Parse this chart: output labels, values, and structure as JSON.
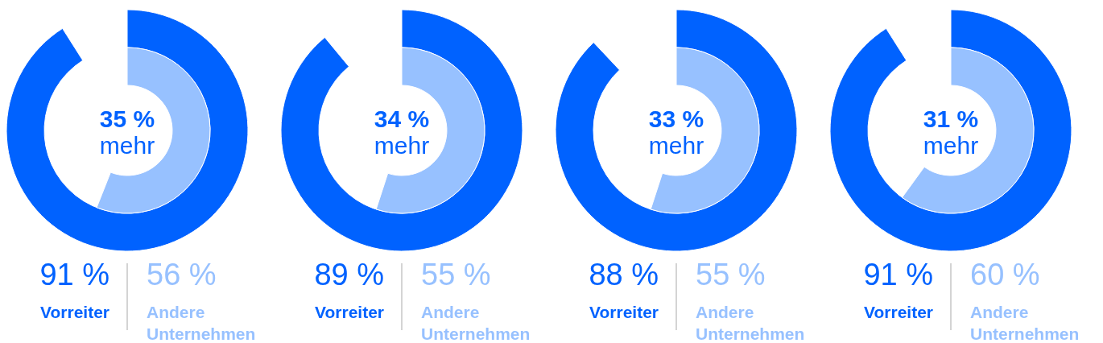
{
  "chart_data": [
    {
      "type": "other",
      "categories": [
        "Vorreiter",
        "Andere Unternehmen"
      ],
      "values": [
        91,
        56
      ],
      "colors": [
        "#0062ff",
        "#97c1ff"
      ],
      "value_labels": [
        "91 %",
        "56 %"
      ],
      "annotations": [
        "35 %",
        "mehr"
      ]
    },
    {
      "type": "other",
      "categories": [
        "Vorreiter",
        "Andere Unternehmen"
      ],
      "values": [
        89,
        55
      ],
      "colors": [
        "#0062ff",
        "#97c1ff"
      ],
      "value_labels": [
        "89 %",
        "55 %"
      ],
      "annotations": [
        "34 %",
        "mehr"
      ]
    },
    {
      "type": "other",
      "categories": [
        "Vorreiter",
        "Andere Unternehmen"
      ],
      "values": [
        88,
        55
      ],
      "colors": [
        "#0062ff",
        "#97c1ff"
      ],
      "value_labels": [
        "88 %",
        "55 %"
      ],
      "annotations": [
        "33 %",
        "mehr"
      ]
    },
    {
      "type": "other",
      "categories": [
        "Vorreiter",
        "Andere Unternehmen"
      ],
      "values": [
        91,
        60
      ],
      "colors": [
        "#0062ff",
        "#97c1ff"
      ],
      "value_labels": [
        "91 %",
        "60 %"
      ],
      "annotations": [
        "31 %",
        "mehr"
      ]
    }
  ]
}
